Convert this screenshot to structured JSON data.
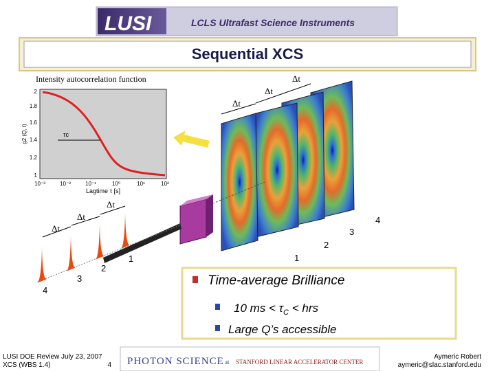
{
  "header": {
    "logo": "LUSI",
    "subtitle": "LCLS Ultrafast Science Instruments"
  },
  "title": "Sequential XCS",
  "figure": {
    "plot_title": "Intensity autocorrelation function",
    "y_label": "g2 (Q, t)",
    "x_label": "Lagtime τ [s]",
    "tau_label": "τc",
    "yticks": [
      "2",
      "1.8",
      "1.6",
      "1.4",
      "1.2",
      "1"
    ],
    "xticks": [
      "10⁻³",
      "10⁻²",
      "10⁻¹",
      "10⁰",
      "10¹",
      "10²"
    ]
  },
  "detector_delays": [
    "Δt",
    "Δt",
    "Δt"
  ],
  "detector_numbers": [
    "1",
    "2",
    "3",
    "4"
  ],
  "pulse_delays": [
    "Δt",
    "Δt",
    "Δt"
  ],
  "pulse_numbers": [
    "1",
    "2",
    "3",
    "4"
  ],
  "box": {
    "heading": "Time-average Brilliance",
    "bullets": [
      {
        "parts": [
          "10 ms < τ",
          "C",
          " < hrs"
        ]
      },
      {
        "parts": [
          "Large Q’s accessible"
        ]
      }
    ]
  },
  "footer": {
    "left": [
      "LUSI DOE Review July 23, 2007",
      "XCS (WBS 1.4)",
      "4"
    ],
    "center": [
      "PHOTON SCIENCE",
      "at",
      "STANFORD LINEAR ACCELERATOR CENTER"
    ],
    "right": [
      "Aymeric Robert",
      "aymeric@slac.stanford.edu"
    ]
  }
}
